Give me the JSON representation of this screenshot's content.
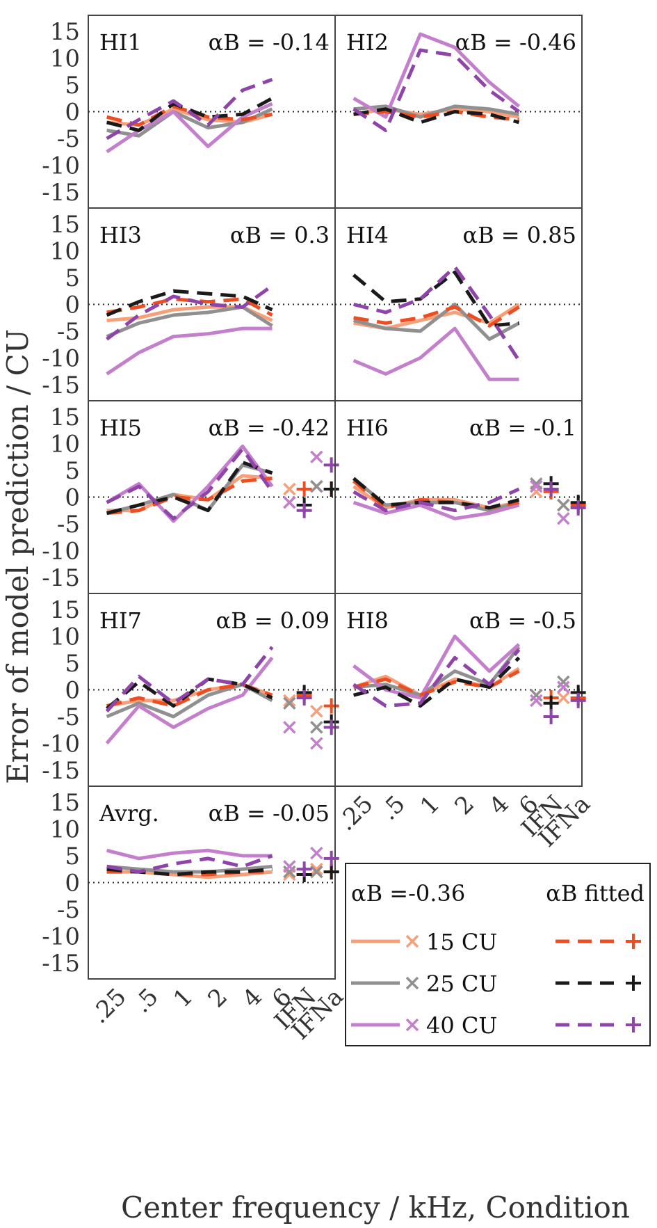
{
  "chart_data": {
    "type": "line",
    "ylabel": "Error of model prediction / CU",
    "xlabel": "Center frequency / kHz, Condition",
    "ylim": [
      -18,
      18
    ],
    "yticks": [
      15,
      10,
      5,
      0,
      -5,
      -10,
      -15
    ],
    "ytick_labels": [
      "15",
      "10",
      "5",
      "0",
      "-5",
      "-10",
      "-15"
    ],
    "x_categories": [
      ".25",
      ".5",
      "1",
      "2",
      "4",
      "6"
    ],
    "condition_categories": [
      "IFN",
      "IFNa"
    ],
    "series_styles": [
      {
        "id": "l15_036",
        "level": "15 CU",
        "model": "αB = -0.36",
        "color": "#f5a07a",
        "dash": false,
        "marker": "×"
      },
      {
        "id": "l15_fit",
        "level": "15 CU",
        "model": "αB fitted",
        "color": "#ee4d22",
        "dash": true,
        "marker": "+"
      },
      {
        "id": "l25_036",
        "level": "25 CU",
        "model": "αB = -0.36",
        "color": "#909090",
        "dash": false,
        "marker": "×"
      },
      {
        "id": "l25_fit",
        "level": "25 CU",
        "model": "αB fitted",
        "color": "#1a1a1a",
        "dash": true,
        "marker": "+"
      },
      {
        "id": "l40_036",
        "level": "40 CU",
        "model": "αB = -0.36",
        "color": "#c47fcc",
        "dash": false,
        "marker": "×"
      },
      {
        "id": "l40_fit",
        "level": "40 CU",
        "model": "αB fitted",
        "color": "#8e44a8",
        "dash": true,
        "marker": "+"
      }
    ],
    "legend": {
      "position": "bottom-right",
      "header_left": "αB =-0.36",
      "header_right": "αB fitted",
      "rows": [
        {
          "label": "15 CU",
          "solid": "#f5a07a",
          "dashed": "#ee4d22"
        },
        {
          "label": "25 CU",
          "solid": "#909090",
          "dashed": "#1a1a1a"
        },
        {
          "label": "40 CU",
          "solid": "#c47fcc",
          "dashed": "#8e44a8"
        }
      ]
    },
    "panels": [
      {
        "name": "HI1",
        "alpha_label": "αB = -0.14",
        "show_conditions": false,
        "series": [
          {
            "style": "l15_036",
            "values": [
              -2,
              -2.5,
              0.5,
              -1.5,
              -2,
              -0.5
            ]
          },
          {
            "style": "l15_fit",
            "values": [
              -1,
              -2.5,
              1,
              -1,
              -1.5,
              -0.5
            ]
          },
          {
            "style": "l25_036",
            "values": [
              -3.5,
              -4.5,
              0,
              -3,
              -2,
              0.5
            ]
          },
          {
            "style": "l25_fit",
            "values": [
              -2,
              -3.5,
              1.5,
              -1,
              -0.5,
              2.5
            ]
          },
          {
            "style": "l40_036",
            "values": [
              -7.5,
              -3.5,
              0,
              -6.5,
              -1,
              1.5
            ]
          },
          {
            "style": "l40_fit",
            "values": [
              -5,
              -1.5,
              2,
              -2.5,
              4,
              6
            ]
          }
        ]
      },
      {
        "name": "HI2",
        "alpha_label": "αB = -0.46",
        "show_conditions": false,
        "series": [
          {
            "style": "l15_036",
            "values": [
              -0.5,
              0.5,
              -0.5,
              0.5,
              0,
              -1
            ]
          },
          {
            "style": "l15_fit",
            "values": [
              -0.5,
              0,
              -1,
              0,
              -1,
              -1.5
            ]
          },
          {
            "style": "l25_036",
            "values": [
              0.5,
              1,
              -1,
              1,
              0.5,
              -0.5
            ]
          },
          {
            "style": "l25_fit",
            "values": [
              -0.5,
              0.5,
              -2,
              0,
              -0.5,
              -2
            ]
          },
          {
            "style": "l40_036",
            "values": [
              2.5,
              -1,
              14.5,
              12,
              5.5,
              1
            ]
          },
          {
            "style": "l40_fit",
            "values": [
              0.5,
              -3.5,
              11.5,
              10.5,
              4,
              0
            ]
          }
        ]
      },
      {
        "name": "HI3",
        "alpha_label": "αB = 0.3",
        "show_conditions": false,
        "series": [
          {
            "style": "l15_036",
            "values": [
              -3,
              -2.5,
              -1,
              -0.5,
              -0.5,
              -3
            ]
          },
          {
            "style": "l15_fit",
            "values": [
              -1.5,
              -0.5,
              1,
              0.5,
              1,
              -2
            ]
          },
          {
            "style": "l25_036",
            "values": [
              -6,
              -3.5,
              -2,
              -1.5,
              -0.5,
              -4
            ]
          },
          {
            "style": "l25_fit",
            "values": [
              -2,
              0.5,
              2.5,
              2,
              1.5,
              -1
            ]
          },
          {
            "style": "l40_036",
            "values": [
              -13,
              -9,
              -6,
              -5.5,
              -4.5,
              -4.5
            ]
          },
          {
            "style": "l40_fit",
            "values": [
              -6.5,
              -2,
              1.5,
              0,
              -0.5,
              3.5
            ]
          }
        ]
      },
      {
        "name": "HI4",
        "alpha_label": "αB = 0.85",
        "show_conditions": false,
        "series": [
          {
            "style": "l15_036",
            "values": [
              -3.5,
              -4.5,
              -3,
              -1.5,
              -3.5,
              0
            ]
          },
          {
            "style": "l15_fit",
            "values": [
              -2.5,
              -3.5,
              -2.5,
              -0.5,
              -4,
              -0.5
            ]
          },
          {
            "style": "l25_036",
            "values": [
              -3,
              -4.5,
              -5,
              0,
              -6.5,
              -3.5
            ]
          },
          {
            "style": "l25_fit",
            "values": [
              5.5,
              0.5,
              1,
              6,
              -4,
              -3.5
            ]
          },
          {
            "style": "l40_036",
            "values": [
              -10.5,
              -13,
              -10,
              -4.5,
              -14,
              -14
            ]
          },
          {
            "style": "l40_fit",
            "values": [
              0,
              -1.5,
              1,
              7,
              -2,
              -10.5
            ]
          }
        ]
      },
      {
        "name": "HI5",
        "alpha_label": "αB = -0.42",
        "show_conditions": true,
        "series": [
          {
            "style": "l15_036",
            "values": [
              -2.5,
              -2.5,
              0.5,
              -0.5,
              4,
              3.5
            ],
            "ifn_x": 1.5,
            "ifna_x": 2
          },
          {
            "style": "l15_fit",
            "values": [
              -3,
              -2.5,
              0,
              -0.5,
              3,
              3.5
            ],
            "ifn_plus": 1.5,
            "ifna_plus": 1.5
          },
          {
            "style": "l25_036",
            "values": [
              -3,
              -1.5,
              0.5,
              -2.5,
              6,
              4.5
            ],
            "ifn_x": -1,
            "ifna_x": 2
          },
          {
            "style": "l25_fit",
            "values": [
              -3,
              -1.5,
              0,
              -2.5,
              6.5,
              4.5
            ],
            "ifn_plus": -1.5,
            "ifna_plus": 1.5
          },
          {
            "style": "l40_036",
            "values": [
              -1,
              2.5,
              -4.5,
              2,
              9.5,
              2
            ],
            "ifn_x": -1,
            "ifna_x": 7.5
          },
          {
            "style": "l40_fit",
            "values": [
              -1,
              2,
              -4,
              1,
              9,
              1
            ],
            "ifn_plus": -2.5,
            "ifna_plus": 6
          }
        ]
      },
      {
        "name": "HI6",
        "alpha_label": "αB = -0.1",
        "show_conditions": true,
        "series": [
          {
            "style": "l15_036",
            "values": [
              2,
              -2,
              -0.5,
              -0.5,
              -2,
              -1
            ],
            "ifn_x": 1,
            "ifna_x": -1.5
          },
          {
            "style": "l15_fit",
            "values": [
              3,
              -2,
              -0.5,
              -1,
              -2,
              -1
            ],
            "ifn_plus": 1,
            "ifna_plus": -1.5
          },
          {
            "style": "l25_036",
            "values": [
              3.5,
              -1.5,
              -1,
              -1,
              -2.5,
              -1
            ],
            "ifn_x": 2.5,
            "ifna_x": -1.5
          },
          {
            "style": "l25_fit",
            "values": [
              3.5,
              -1.5,
              -1,
              -1,
              -2,
              -0.5
            ],
            "ifn_plus": 2.5,
            "ifna_plus": -1
          },
          {
            "style": "l40_036",
            "values": [
              -1,
              -3,
              -1.5,
              -4,
              -3,
              -1.5
            ],
            "ifn_x": 2,
            "ifna_x": -4
          },
          {
            "style": "l40_fit",
            "values": [
              1,
              -2.5,
              -1,
              -2.5,
              -1,
              1.5
            ],
            "ifn_plus": 1.5,
            "ifna_plus": -2
          }
        ]
      },
      {
        "name": "HI7",
        "alpha_label": "αB = 0.09",
        "show_conditions": true,
        "series": [
          {
            "style": "l15_036",
            "values": [
              -3,
              -2,
              -2,
              0,
              1,
              -1
            ],
            "ifn_x": -2,
            "ifna_x": -4
          },
          {
            "style": "l15_fit",
            "values": [
              -3,
              -1.5,
              -3,
              0,
              1,
              -1
            ],
            "ifn_plus": -1,
            "ifna_plus": -3
          },
          {
            "style": "l25_036",
            "values": [
              -5,
              -2.5,
              -5,
              -1,
              1,
              -2
            ],
            "ifn_x": -2.5,
            "ifna_x": -7
          },
          {
            "style": "l25_fit",
            "values": [
              -3.5,
              1.5,
              -3,
              2,
              1,
              -1.5
            ],
            "ifn_plus": -0.5,
            "ifna_plus": -6
          },
          {
            "style": "l40_036",
            "values": [
              -10,
              -3,
              -7,
              -3.5,
              -1,
              6
            ],
            "ifn_x": -7,
            "ifna_x": -10
          },
          {
            "style": "l40_fit",
            "values": [
              -4,
              2.5,
              -2.5,
              2,
              1,
              8
            ],
            "ifn_plus": -1.5,
            "ifna_plus": -7
          }
        ]
      },
      {
        "name": "HI8",
        "alpha_label": "αB = -0.5",
        "show_conditions": true,
        "series": [
          {
            "style": "l15_036",
            "values": [
              0.5,
              2.5,
              -1,
              2,
              0.5,
              4
            ],
            "ifn_x": -1,
            "ifna_x": -1.5
          },
          {
            "style": "l15_fit",
            "values": [
              0.5,
              2,
              -1,
              1.5,
              0.5,
              3.5
            ],
            "ifn_plus": -1.5,
            "ifna_plus": -1.5
          },
          {
            "style": "l25_036",
            "values": [
              0.5,
              1,
              -1,
              3.5,
              1,
              8
            ],
            "ifn_x": -1,
            "ifna_x": 1.5
          },
          {
            "style": "l25_fit",
            "values": [
              -1,
              0.5,
              -3,
              2,
              0.5,
              6
            ],
            "ifn_plus": -2.5,
            "ifna_plus": -0.5
          },
          {
            "style": "l40_036",
            "values": [
              4.5,
              0,
              -1.5,
              10,
              3.5,
              8.5
            ],
            "ifn_x": -2,
            "ifna_x": 0.5
          },
          {
            "style": "l40_fit",
            "values": [
              1,
              -3,
              -2.5,
              6,
              1,
              7.5
            ],
            "ifn_plus": -5,
            "ifna_plus": -2
          }
        ]
      },
      {
        "name": "Avrg.",
        "alpha_label": "αB = -0.05",
        "show_conditions": true,
        "series": [
          {
            "style": "l15_036",
            "values": [
              2,
              2,
              1.5,
              1,
              1.5,
              2
            ],
            "ifn_x": 1.5,
            "ifna_x": 2.5
          },
          {
            "style": "l15_fit",
            "values": [
              2,
              2,
              1.5,
              1.5,
              2,
              2
            ],
            "ifn_plus": 1.5,
            "ifna_plus": 2
          },
          {
            "style": "l25_036",
            "values": [
              3,
              2.5,
              2,
              2,
              2.5,
              3
            ],
            "ifn_x": 2,
            "ifna_x": 2
          },
          {
            "style": "l25_fit",
            "values": [
              2.5,
              2,
              1.5,
              2,
              2,
              2.5
            ],
            "ifn_plus": 1.5,
            "ifna_plus": 2
          },
          {
            "style": "l40_036",
            "values": [
              6,
              4.5,
              5.5,
              6,
              5,
              5
            ],
            "ifn_x": 3,
            "ifna_x": 5.5
          },
          {
            "style": "l40_fit",
            "values": [
              3,
              2,
              3.5,
              4.5,
              3,
              5
            ],
            "ifn_plus": 2.5,
            "ifna_plus": 4.5
          }
        ]
      }
    ]
  }
}
